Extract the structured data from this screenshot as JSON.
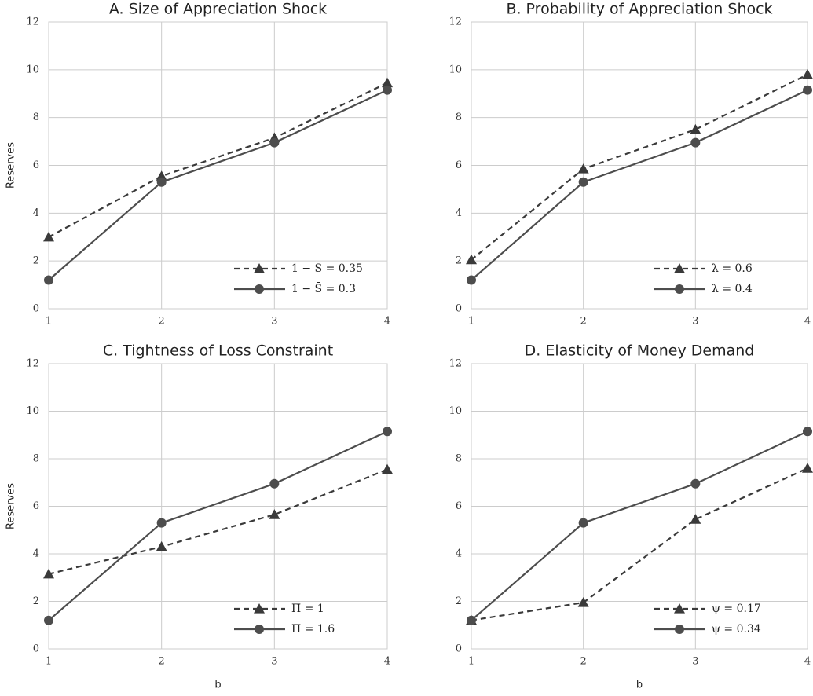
{
  "chart_data": [
    {
      "type": "line",
      "title": "A. Size of Appreciation Shock",
      "ylabel": "Reserves",
      "x": [
        1,
        2,
        3,
        4
      ],
      "xlim": [
        1,
        4
      ],
      "xticks": [
        1,
        2,
        3,
        4
      ],
      "ylim": [
        0,
        12
      ],
      "yticks": [
        0,
        2,
        4,
        6,
        8,
        10,
        12
      ],
      "grid": true,
      "legend": "lower right",
      "series": [
        {
          "name": "1 − S̄ = 0.35",
          "color": "#3a3a3a",
          "linestyle": "dashed",
          "marker": "triangle",
          "values": [
            3.0,
            5.55,
            7.15,
            9.45
          ]
        },
        {
          "name": "1 − S̄ = 0.3",
          "color": "#4d4d4d",
          "linestyle": "solid",
          "marker": "circle",
          "values": [
            1.2,
            5.3,
            6.95,
            9.15
          ]
        }
      ]
    },
    {
      "type": "line",
      "title": "B. Probability of Appreciation Shock",
      "x": [
        1,
        2,
        3,
        4
      ],
      "xlim": [
        1,
        4
      ],
      "xticks": [
        1,
        2,
        3,
        4
      ],
      "ylim": [
        0,
        12
      ],
      "yticks": [
        0,
        2,
        4,
        6,
        8,
        10,
        12
      ],
      "grid": true,
      "legend": "lower right",
      "series": [
        {
          "name": "λ = 0.6",
          "color": "#3a3a3a",
          "linestyle": "dashed",
          "marker": "triangle",
          "values": [
            2.05,
            5.85,
            7.5,
            9.8
          ]
        },
        {
          "name": "λ = 0.4",
          "color": "#4d4d4d",
          "linestyle": "solid",
          "marker": "circle",
          "values": [
            1.2,
            5.3,
            6.95,
            9.15
          ]
        }
      ]
    },
    {
      "type": "line",
      "title": "C. Tightness of Loss Constraint",
      "ylabel": "Reserves",
      "xlabel": "b",
      "x": [
        1,
        2,
        3,
        4
      ],
      "xlim": [
        1,
        4
      ],
      "xticks": [
        1,
        2,
        3,
        4
      ],
      "ylim": [
        0,
        12
      ],
      "yticks": [
        0,
        2,
        4,
        6,
        8,
        10,
        12
      ],
      "grid": true,
      "legend": "lower right",
      "series": [
        {
          "name": "Π̄ = 1",
          "color": "#3a3a3a",
          "linestyle": "dashed",
          "marker": "triangle",
          "values": [
            3.15,
            4.3,
            5.65,
            7.55
          ]
        },
        {
          "name": "Π̄ = 1.6",
          "color": "#4d4d4d",
          "linestyle": "solid",
          "marker": "circle",
          "values": [
            1.2,
            5.3,
            6.95,
            9.15
          ]
        }
      ]
    },
    {
      "type": "line",
      "title": "D. Elasticity of Money Demand",
      "xlabel": "b",
      "x": [
        1,
        2,
        3,
        4
      ],
      "xlim": [
        1,
        4
      ],
      "xticks": [
        1,
        2,
        3,
        4
      ],
      "ylim": [
        0,
        12
      ],
      "yticks": [
        0,
        2,
        4,
        6,
        8,
        10,
        12
      ],
      "grid": true,
      "legend": "lower right",
      "series": [
        {
          "name": "ψ = 0.17",
          "color": "#3a3a3a",
          "linestyle": "dashed",
          "marker": "triangle",
          "values": [
            1.2,
            1.95,
            5.45,
            7.6
          ]
        },
        {
          "name": "ψ = 0.34",
          "color": "#4d4d4d",
          "linestyle": "solid",
          "marker": "circle",
          "values": [
            1.2,
            5.3,
            6.95,
            9.15
          ]
        }
      ]
    }
  ]
}
